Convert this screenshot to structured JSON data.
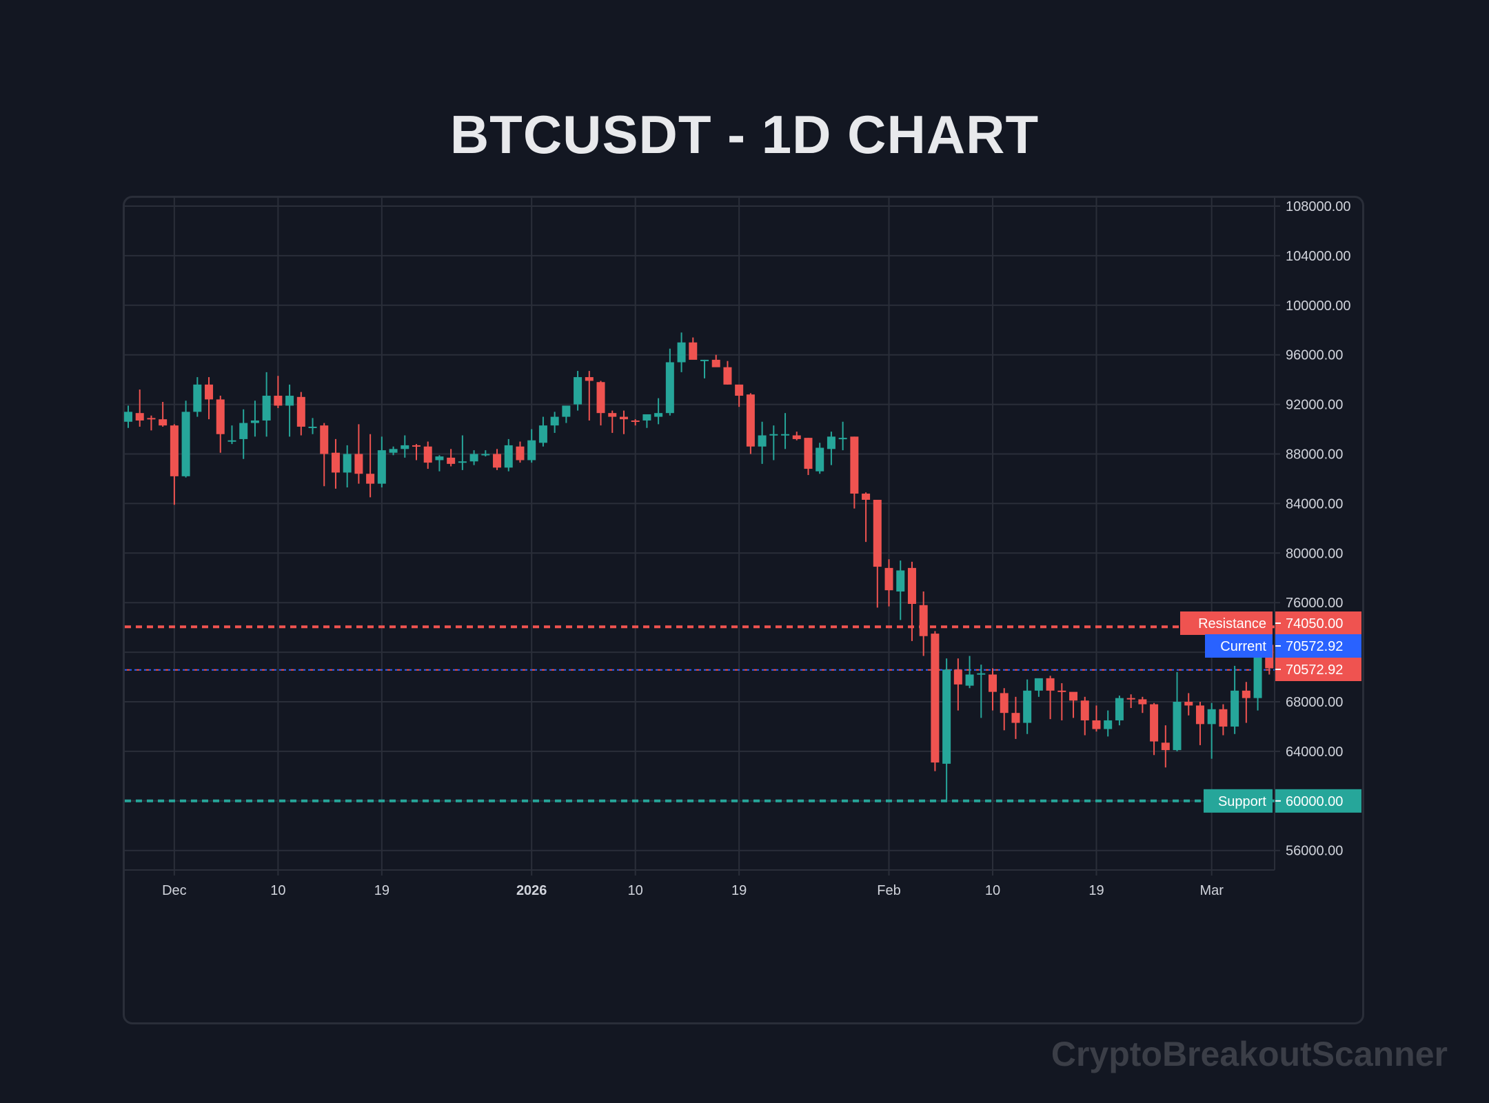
{
  "title": "BTCUSDT - 1D CHART",
  "watermark": "CryptoBreakoutScanner",
  "colors": {
    "background": "#131722",
    "grid": "#2a2e39",
    "up": "#26a69a",
    "down": "#ef5350",
    "current": "#2962ff",
    "text": "#d1d4dc"
  },
  "chart_data": {
    "type": "candlestick",
    "title": "BTCUSDT - 1D CHART",
    "xlabel": "",
    "ylabel": "",
    "ylim": [
      54500,
      108700
    ],
    "y_ticks": [
      108000,
      104000,
      100000,
      96000,
      92000,
      88000,
      84000,
      80000,
      76000,
      68000,
      64000,
      56000
    ],
    "x_ticks": [
      {
        "label": "Dec",
        "index": 4,
        "bold": false
      },
      {
        "label": "10",
        "index": 13,
        "bold": false
      },
      {
        "label": "19",
        "index": 22,
        "bold": false
      },
      {
        "label": "2026",
        "index": 35,
        "bold": true
      },
      {
        "label": "10",
        "index": 44,
        "bold": false
      },
      {
        "label": "19",
        "index": 53,
        "bold": false
      },
      {
        "label": "Feb",
        "index": 66,
        "bold": false
      },
      {
        "label": "10",
        "index": 75,
        "bold": false
      },
      {
        "label": "19",
        "index": 84,
        "bold": false
      },
      {
        "label": "Mar",
        "index": 94,
        "bold": false
      }
    ],
    "grid": true,
    "levels": [
      {
        "name": "Resistance",
        "value": 74050.0,
        "label": "74050.00",
        "color": "#ef5350",
        "style": "dashed"
      },
      {
        "name": "Current",
        "value": 70572.92,
        "label": "70572.92",
        "color": "#2962ff",
        "style": "dotted"
      },
      {
        "name": "Support",
        "value": 60000.0,
        "label": "60000.00",
        "color": "#26a69a",
        "style": "dashed"
      }
    ],
    "last_price": {
      "value": 70572.92,
      "label": "70572.92",
      "color": "#ef5350"
    },
    "candles": [
      [
        90600,
        91900,
        90100,
        91400
      ],
      [
        91300,
        93200,
        90200,
        90700
      ],
      [
        90900,
        91100,
        89900,
        90800
      ],
      [
        90800,
        92200,
        90200,
        90300
      ],
      [
        90300,
        90400,
        83900,
        86200
      ],
      [
        86200,
        92300,
        86100,
        91400
      ],
      [
        91400,
        94200,
        91000,
        93600
      ],
      [
        93600,
        94200,
        90800,
        92400
      ],
      [
        92400,
        92700,
        88100,
        89600
      ],
      [
        89100,
        90300,
        88800,
        89100
      ],
      [
        89200,
        91600,
        87600,
        90500
      ],
      [
        90500,
        92300,
        89400,
        90700
      ],
      [
        90700,
        94600,
        89400,
        92700
      ],
      [
        92700,
        94300,
        91700,
        91900
      ],
      [
        91900,
        93600,
        89400,
        92700
      ],
      [
        92600,
        93000,
        89500,
        90200
      ],
      [
        90200,
        90900,
        89600,
        90200
      ],
      [
        90300,
        90500,
        85400,
        88000
      ],
      [
        88100,
        89200,
        85200,
        86500
      ],
      [
        86500,
        88700,
        85300,
        88000
      ],
      [
        88000,
        90400,
        85600,
        86400
      ],
      [
        86400,
        89600,
        84500,
        85600
      ],
      [
        85600,
        89400,
        85300,
        88300
      ],
      [
        88100,
        88600,
        87900,
        88400
      ],
      [
        88400,
        89500,
        87700,
        88700
      ],
      [
        88700,
        88800,
        87500,
        88600
      ],
      [
        88600,
        89000,
        86800,
        87300
      ],
      [
        87500,
        87900,
        86600,
        87800
      ],
      [
        87700,
        88400,
        87000,
        87200
      ],
      [
        87300,
        89500,
        86700,
        87400
      ],
      [
        87400,
        88300,
        87100,
        88000
      ],
      [
        87900,
        88300,
        87800,
        88000
      ],
      [
        88000,
        88400,
        86700,
        86900
      ],
      [
        86900,
        89200,
        86600,
        88700
      ],
      [
        88600,
        89000,
        87300,
        87500
      ],
      [
        87500,
        90000,
        87300,
        89100
      ],
      [
        88900,
        91000,
        88600,
        90300
      ],
      [
        90300,
        91400,
        89700,
        91000
      ],
      [
        91000,
        91800,
        90500,
        91900
      ],
      [
        92000,
        94700,
        91500,
        94200
      ],
      [
        94200,
        94700,
        90700,
        93900
      ],
      [
        93800,
        93900,
        90300,
        91300
      ],
      [
        91300,
        91500,
        89700,
        91000
      ],
      [
        91000,
        91500,
        89600,
        90800
      ],
      [
        90700,
        90800,
        90300,
        90600
      ],
      [
        90700,
        91000,
        90100,
        91200
      ],
      [
        91000,
        92500,
        90400,
        91300
      ],
      [
        91300,
        96500,
        91100,
        95400
      ],
      [
        95400,
        97800,
        94600,
        97000
      ],
      [
        97000,
        97400,
        95700,
        95600
      ],
      [
        95600,
        95600,
        94100,
        95600
      ],
      [
        95600,
        96000,
        95100,
        95000
      ],
      [
        95000,
        95500,
        93600,
        93600
      ],
      [
        93600,
        93500,
        91800,
        92700
      ],
      [
        92800,
        92900,
        88000,
        88600
      ],
      [
        88600,
        90600,
        87200,
        89500
      ],
      [
        89500,
        90300,
        87500,
        89600
      ],
      [
        89500,
        91300,
        88400,
        89600
      ],
      [
        89500,
        89800,
        89100,
        89200
      ],
      [
        89300,
        89300,
        86300,
        86800
      ],
      [
        86600,
        88900,
        86400,
        88500
      ],
      [
        88400,
        89800,
        87100,
        89400
      ],
      [
        89300,
        90600,
        88300,
        89300
      ],
      [
        89400,
        89400,
        83600,
        84800
      ],
      [
        84800,
        84900,
        80900,
        84300
      ],
      [
        84300,
        84200,
        75600,
        78900
      ],
      [
        78800,
        79500,
        75700,
        77000
      ],
      [
        76900,
        79400,
        74600,
        78600
      ],
      [
        78800,
        79300,
        72900,
        75900
      ],
      [
        75800,
        76900,
        71700,
        73300
      ],
      [
        73500,
        73700,
        62400,
        63100
      ],
      [
        63000,
        71500,
        60100,
        70600
      ],
      [
        70600,
        71500,
        67300,
        69400
      ],
      [
        69300,
        71700,
        69100,
        70200
      ],
      [
        70300,
        71000,
        66700,
        70300
      ],
      [
        70200,
        70700,
        67300,
        68800
      ],
      [
        68700,
        69100,
        65700,
        67100
      ],
      [
        67100,
        68400,
        65000,
        66300
      ],
      [
        66300,
        69800,
        65400,
        68900
      ],
      [
        68900,
        69700,
        68400,
        69900
      ],
      [
        69900,
        70100,
        66600,
        68900
      ],
      [
        68900,
        69500,
        66500,
        68800
      ],
      [
        68800,
        68400,
        66700,
        68100
      ],
      [
        68100,
        68400,
        65300,
        66500
      ],
      [
        66500,
        67700,
        65600,
        65800
      ],
      [
        65800,
        67300,
        65200,
        66500
      ],
      [
        66500,
        68500,
        66100,
        68300
      ],
      [
        68300,
        68600,
        67500,
        68200
      ],
      [
        68200,
        68400,
        67100,
        67800
      ],
      [
        67800,
        67900,
        63700,
        64800
      ],
      [
        64700,
        66100,
        62700,
        64100
      ],
      [
        64100,
        70400,
        64000,
        68000
      ],
      [
        68000,
        68700,
        66900,
        67700
      ],
      [
        67700,
        68000,
        64500,
        66200
      ],
      [
        66200,
        67900,
        63400,
        67400
      ],
      [
        67400,
        67800,
        65300,
        66000
      ],
      [
        66000,
        70900,
        65400,
        68900
      ],
      [
        68900,
        69600,
        66300,
        68300
      ],
      [
        68300,
        74300,
        67300,
        72600
      ],
      [
        72600,
        73500,
        70200,
        70700
      ],
      [
        70700,
        71600,
        70200,
        70573
      ]
    ]
  }
}
